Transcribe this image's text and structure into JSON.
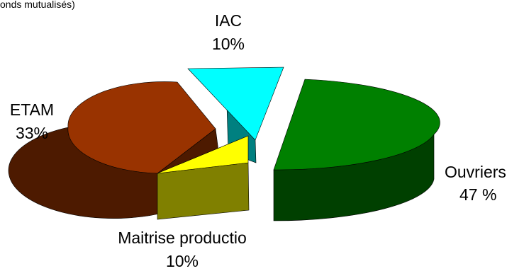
{
  "chart_data": {
    "type": "pie",
    "style": "3d-exploded",
    "title": "",
    "subtitle_fragment": "onds mutualisés)",
    "slices": [
      {
        "name": "Ouvriers",
        "label": "Ouvriers",
        "value_label": "47 %",
        "value": 47,
        "top_color": "#008000",
        "side_color": "#004000"
      },
      {
        "name": "Maitrise production",
        "label": "Maitrise productio",
        "value_label": "10%",
        "value": 10,
        "top_color": "#FFFF00",
        "side_color": "#808000"
      },
      {
        "name": "ETAM",
        "label": "ETAM",
        "value_label": "33%",
        "value": 33,
        "top_color": "#993300",
        "side_color": "#4D1A00"
      },
      {
        "name": "IAC",
        "label": "IAC",
        "value_label": "10%",
        "value": 10,
        "top_color": "#00FFFF",
        "side_color": "#008080"
      }
    ]
  }
}
